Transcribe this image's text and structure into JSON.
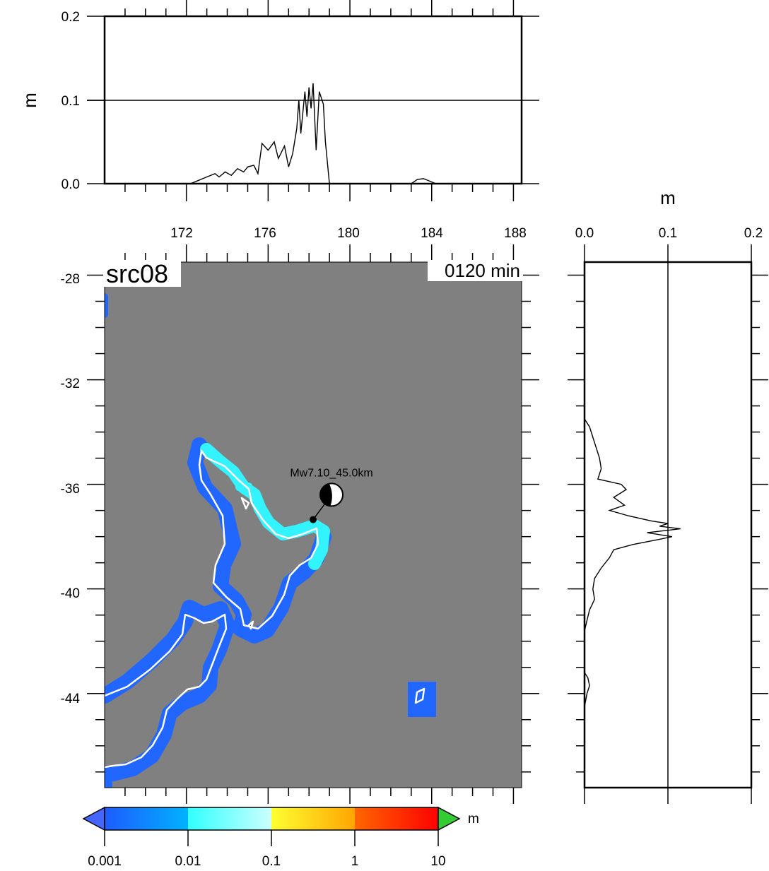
{
  "map": {
    "source_label": "src08",
    "time_label": "0120 min",
    "epicenter_label": "Mw7.10_45.0km",
    "x_ticks": [
      "172",
      "176",
      "180",
      "184",
      "188"
    ],
    "y_ticks": [
      "-28",
      "-32",
      "-36",
      "-40",
      "-44"
    ],
    "lon_range": [
      168,
      188.4
    ],
    "lat_range": [
      -47.6,
      -27.5
    ],
    "ocean_color": "#808080",
    "coast_color": "#ffffff",
    "epicenter": {
      "lon": 178.2,
      "lat": -37.35
    },
    "mechanism_plot": {
      "lon": 179.1,
      "lat": -36.4
    }
  },
  "top_profile": {
    "ylabel": "m",
    "y_ticks": [
      "0.0",
      "0.1",
      "0.2"
    ],
    "ylim": [
      0,
      0.2
    ],
    "reference_line": 0.1,
    "profile": [
      [
        172.2,
        0.0
      ],
      [
        172.6,
        0.004
      ],
      [
        173.0,
        0.008
      ],
      [
        173.4,
        0.012
      ],
      [
        173.6,
        0.008
      ],
      [
        173.9,
        0.014
      ],
      [
        174.2,
        0.01
      ],
      [
        174.5,
        0.018
      ],
      [
        174.8,
        0.014
      ],
      [
        175.0,
        0.02
      ],
      [
        175.3,
        0.022
      ],
      [
        175.5,
        0.012
      ],
      [
        175.7,
        0.048
      ],
      [
        176.0,
        0.04
      ],
      [
        176.3,
        0.05
      ],
      [
        176.5,
        0.03
      ],
      [
        176.8,
        0.045
      ],
      [
        177.0,
        0.02
      ],
      [
        177.2,
        0.036
      ],
      [
        177.4,
        0.066
      ],
      [
        177.5,
        0.1
      ],
      [
        177.6,
        0.06
      ],
      [
        177.8,
        0.11
      ],
      [
        177.9,
        0.08
      ],
      [
        178.0,
        0.115
      ],
      [
        178.1,
        0.09
      ],
      [
        178.2,
        0.12
      ],
      [
        178.35,
        0.04
      ],
      [
        178.5,
        0.11
      ],
      [
        178.7,
        0.095
      ],
      [
        178.8,
        0.05
      ],
      [
        179.0,
        0.0
      ],
      [
        183.0,
        0.0
      ],
      [
        183.3,
        0.005
      ],
      [
        183.6,
        0.006
      ],
      [
        183.9,
        0.003
      ],
      [
        184.2,
        0.0
      ]
    ]
  },
  "right_profile": {
    "xlabel": "m",
    "x_ticks": [
      "0.0",
      "0.1",
      "0.2"
    ],
    "xlim": [
      0,
      0.2
    ],
    "reference_line": 0.1,
    "profile": [
      [
        -33.5,
        0.0
      ],
      [
        -33.8,
        0.006
      ],
      [
        -34.2,
        0.01
      ],
      [
        -34.6,
        0.014
      ],
      [
        -35.0,
        0.018
      ],
      [
        -35.4,
        0.02
      ],
      [
        -35.8,
        0.016
      ],
      [
        -36.0,
        0.044
      ],
      [
        -36.2,
        0.05
      ],
      [
        -36.5,
        0.035
      ],
      [
        -36.8,
        0.048
      ],
      [
        -37.0,
        0.03
      ],
      [
        -37.2,
        0.052
      ],
      [
        -37.4,
        0.08
      ],
      [
        -37.5,
        0.1
      ],
      [
        -37.6,
        0.09
      ],
      [
        -37.7,
        0.115
      ],
      [
        -37.85,
        0.075
      ],
      [
        -38.0,
        0.105
      ],
      [
        -38.1,
        0.09
      ],
      [
        -38.3,
        0.058
      ],
      [
        -38.5,
        0.035
      ],
      [
        -38.8,
        0.03
      ],
      [
        -39.2,
        0.02
      ],
      [
        -39.6,
        0.012
      ],
      [
        -40.0,
        0.01
      ],
      [
        -40.4,
        0.012
      ],
      [
        -40.8,
        0.006
      ],
      [
        -41.2,
        0.003
      ],
      [
        -41.6,
        0.0
      ],
      [
        -43.2,
        0.0
      ],
      [
        -43.4,
        0.004
      ],
      [
        -43.7,
        0.006
      ],
      [
        -44.0,
        0.003
      ],
      [
        -44.5,
        0.0
      ]
    ]
  },
  "colorbar": {
    "unit_label": "m",
    "tick_labels": [
      "0.001",
      "0.01",
      "0.1",
      "1",
      "10"
    ],
    "gradient_colors": [
      "#1e5cff",
      "#00b2ff",
      "#33ffff",
      "#ccffff",
      "#ffff33",
      "#ffa500",
      "#ff6600",
      "#ff0000"
    ],
    "under_color": "#4466ff",
    "over_color": "#33cc33"
  }
}
